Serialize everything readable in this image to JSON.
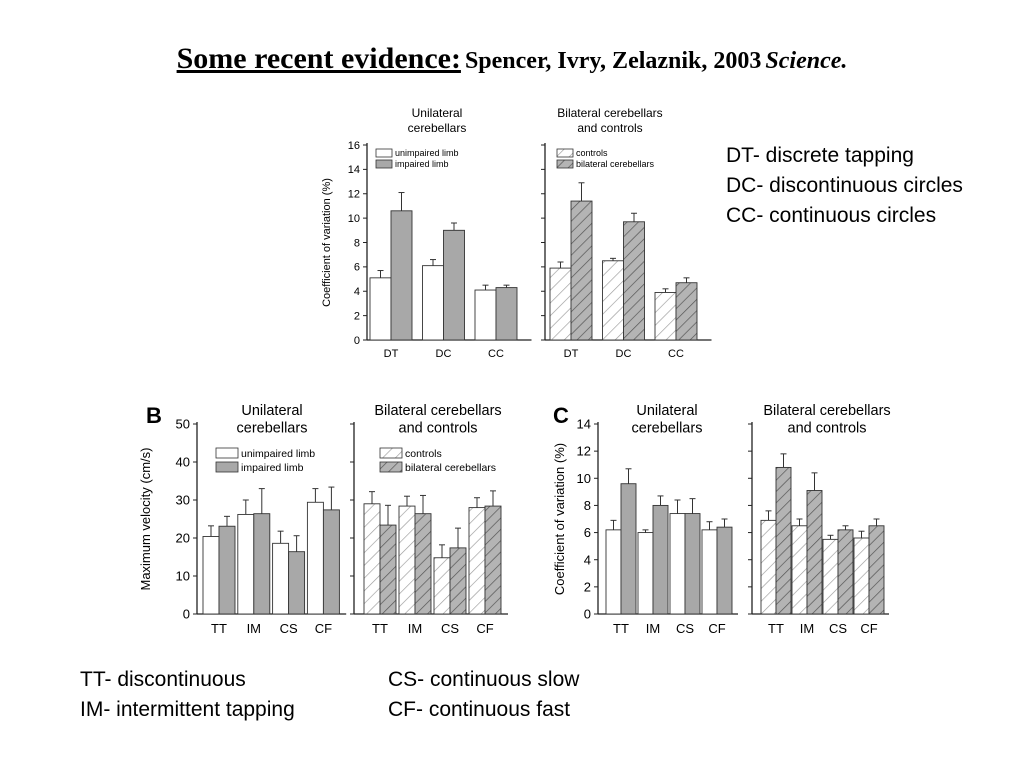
{
  "title": {
    "lead": "Some recent evidence:",
    "cite": "Spencer, Ivry, Zelaznik, 2003",
    "journal": "Science."
  },
  "top_notes": [
    "DT- discrete tapping",
    "DC- discontinuous circles",
    "CC- continuous circles"
  ],
  "bottom_notes": {
    "left": [
      "TT- discontinuous",
      "IM- intermittent tapping"
    ],
    "right": [
      "CS- continuous slow",
      "CF- continuous fast"
    ]
  },
  "colors": {
    "gray_fill": "#a8a8a8",
    "white_fill": "#ffffff",
    "stroke": "#333333"
  },
  "chart_data": [
    {
      "type": "bar",
      "panel_label": "",
      "ylabel": "Coefficient of variation (%)",
      "ylim": [
        0,
        16
      ],
      "yticks": [
        0,
        2,
        4,
        6,
        8,
        10,
        12,
        14,
        16
      ],
      "categories": [
        "DT",
        "DC",
        "CC"
      ],
      "subpanels": [
        {
          "title": [
            "Unilateral",
            "cerebellars"
          ],
          "series": [
            {
              "name": "unimpaired limb",
              "style": "white",
              "values": [
                5.1,
                6.1,
                4.1
              ],
              "errors": [
                0.6,
                0.5,
                0.4
              ]
            },
            {
              "name": "impaired limb",
              "style": "gray",
              "values": [
                10.6,
                9.0,
                4.3
              ],
              "errors": [
                1.5,
                0.6,
                0.2
              ]
            }
          ]
        },
        {
          "title": [
            "Bilateral cerebellars",
            "and controls"
          ],
          "series": [
            {
              "name": "controls",
              "style": "hatch-light",
              "values": [
                5.9,
                6.5,
                3.9
              ],
              "errors": [
                0.5,
                0.2,
                0.3
              ]
            },
            {
              "name": "bilateral cerebellars",
              "style": "hatch-gray",
              "values": [
                11.4,
                9.7,
                4.7
              ],
              "errors": [
                1.5,
                0.7,
                0.4
              ]
            }
          ]
        }
      ]
    },
    {
      "type": "bar",
      "panel_label": "B",
      "ylabel": "Maximum velocity (cm/s)",
      "ylim": [
        0,
        50
      ],
      "yticks": [
        0,
        10,
        20,
        30,
        40,
        50
      ],
      "categories": [
        "TT",
        "IM",
        "CS",
        "CF"
      ],
      "subpanels": [
        {
          "title": [
            "Unilateral",
            "cerebellars"
          ],
          "series": [
            {
              "name": "unimpaired limb",
              "style": "white",
              "values": [
                20.4,
                26.2,
                18.6,
                29.4
              ],
              "errors": [
                2.8,
                3.8,
                3.2,
                3.6
              ]
            },
            {
              "name": "impaired limb",
              "style": "gray",
              "values": [
                23.1,
                26.4,
                16.4,
                27.4
              ],
              "errors": [
                2.6,
                6.6,
                4.2,
                6.0
              ]
            }
          ]
        },
        {
          "title": [
            "Bilateral cerebellars",
            "and controls"
          ],
          "series": [
            {
              "name": "controls",
              "style": "hatch-light",
              "values": [
                29.0,
                28.4,
                14.8,
                28.0
              ],
              "errors": [
                3.2,
                2.6,
                3.4,
                2.6
              ]
            },
            {
              "name": "bilateral cerebellars",
              "style": "hatch-gray",
              "values": [
                23.4,
                26.4,
                17.4,
                28.4
              ],
              "errors": [
                5.2,
                4.8,
                5.2,
                4.0
              ]
            }
          ]
        }
      ]
    },
    {
      "type": "bar",
      "panel_label": "C",
      "ylabel": "Coefficient of variation (%)",
      "ylim": [
        0,
        14
      ],
      "yticks": [
        0,
        2,
        4,
        6,
        8,
        10,
        12,
        14
      ],
      "categories": [
        "TT",
        "IM",
        "CS",
        "CF"
      ],
      "subpanels": [
        {
          "title": [
            "Unilateral",
            "cerebellars"
          ],
          "series": [
            {
              "name": "unimpaired limb",
              "style": "white",
              "values": [
                6.2,
                6.0,
                7.4,
                6.2
              ],
              "errors": [
                0.7,
                0.2,
                1.0,
                0.6
              ]
            },
            {
              "name": "impaired limb",
              "style": "gray",
              "values": [
                9.6,
                8.0,
                7.4,
                6.4
              ],
              "errors": [
                1.1,
                0.7,
                1.1,
                0.6
              ]
            }
          ]
        },
        {
          "title": [
            "Bilateral cerebellars",
            "and controls"
          ],
          "series": [
            {
              "name": "controls",
              "style": "hatch-light",
              "values": [
                6.9,
                6.5,
                5.5,
                5.6
              ],
              "errors": [
                0.7,
                0.5,
                0.3,
                0.5
              ]
            },
            {
              "name": "bilateral cerebellars",
              "style": "hatch-gray",
              "values": [
                10.8,
                9.1,
                6.2,
                6.5
              ],
              "errors": [
                1.0,
                1.3,
                0.3,
                0.5
              ]
            }
          ]
        }
      ]
    }
  ]
}
